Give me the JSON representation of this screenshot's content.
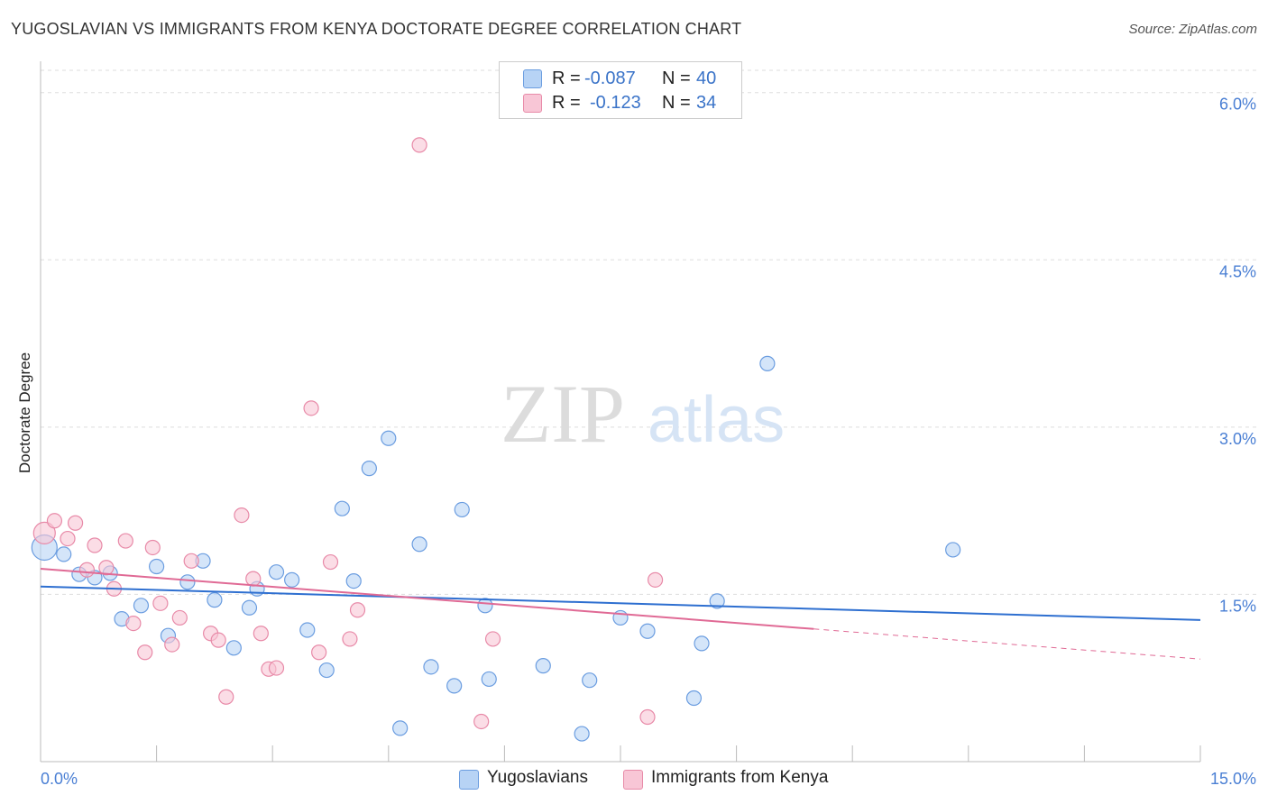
{
  "header": {
    "title": "YUGOSLAVIAN VS IMMIGRANTS FROM KENYA DOCTORATE DEGREE CORRELATION CHART",
    "source": "Source: ZipAtlas.com"
  },
  "watermark": {
    "zip": "ZIP",
    "atlas": "atlas"
  },
  "legend": {
    "rows": [
      {
        "r_label": "R =",
        "r_value": "-0.087",
        "n_label": "N =",
        "n_value": "40"
      },
      {
        "r_label": "R =",
        "r_value": "-0.123",
        "n_label": "N =",
        "n_value": "34"
      }
    ]
  },
  "colors": {
    "blue_fill": "#b7d3f5",
    "blue_stroke": "#6b9de0",
    "blue_line": "#2e6fd0",
    "pink_fill": "#f8c6d6",
    "pink_stroke": "#e88aa8",
    "pink_line": "#e06a95",
    "tick": "#4a7fd4",
    "grid": "#dddddd"
  },
  "chart_data": {
    "type": "scatter",
    "title": "YUGOSLAVIAN VS IMMIGRANTS FROM KENYA DOCTORATE DEGREE CORRELATION CHART",
    "xlabel": "",
    "ylabel": "Doctorate Degree",
    "xlim": [
      0,
      15
    ],
    "ylim": [
      0,
      6.2
    ],
    "x_tick_labels": [
      "0.0%",
      "15.0%"
    ],
    "y_ticks": [
      1.5,
      3.0,
      4.5,
      6.0
    ],
    "y_tick_labels": [
      "1.5%",
      "3.0%",
      "4.5%",
      "6.0%"
    ],
    "grid": true,
    "legend_position": "top-center",
    "series": [
      {
        "name": "Yugoslavians",
        "color": "#b7d3f5",
        "points": [
          [
            0.05,
            1.92
          ],
          [
            0.3,
            1.86
          ],
          [
            0.5,
            1.68
          ],
          [
            0.7,
            1.65
          ],
          [
            0.9,
            1.69
          ],
          [
            1.05,
            1.28
          ],
          [
            1.3,
            1.4
          ],
          [
            1.5,
            1.75
          ],
          [
            1.65,
            1.13
          ],
          [
            1.9,
            1.61
          ],
          [
            2.1,
            1.8
          ],
          [
            2.25,
            1.45
          ],
          [
            2.5,
            1.02
          ],
          [
            2.7,
            1.38
          ],
          [
            2.8,
            1.55
          ],
          [
            3.05,
            1.7
          ],
          [
            3.25,
            1.63
          ],
          [
            3.45,
            1.18
          ],
          [
            3.7,
            0.82
          ],
          [
            3.9,
            2.27
          ],
          [
            4.05,
            1.62
          ],
          [
            4.25,
            2.63
          ],
          [
            4.5,
            2.9
          ],
          [
            4.65,
            0.3
          ],
          [
            4.9,
            1.95
          ],
          [
            5.05,
            0.85
          ],
          [
            5.35,
            0.68
          ],
          [
            5.45,
            2.26
          ],
          [
            5.75,
            1.4
          ],
          [
            5.8,
            0.74
          ],
          [
            6.5,
            0.86
          ],
          [
            7.0,
            0.25
          ],
          [
            7.1,
            0.73
          ],
          [
            7.5,
            1.29
          ],
          [
            7.85,
            1.17
          ],
          [
            8.45,
            0.57
          ],
          [
            8.55,
            1.06
          ],
          [
            8.75,
            1.44
          ],
          [
            9.4,
            3.57
          ],
          [
            11.8,
            1.9
          ]
        ],
        "trend": {
          "x": [
            0,
            15
          ],
          "y": [
            1.57,
            1.27
          ]
        }
      },
      {
        "name": "Immigrants from Kenya",
        "color": "#f8c6d6",
        "points": [
          [
            0.05,
            2.05
          ],
          [
            0.18,
            2.16
          ],
          [
            0.35,
            2.0
          ],
          [
            0.45,
            2.14
          ],
          [
            0.6,
            1.72
          ],
          [
            0.7,
            1.94
          ],
          [
            0.85,
            1.74
          ],
          [
            0.95,
            1.55
          ],
          [
            1.1,
            1.98
          ],
          [
            1.2,
            1.24
          ],
          [
            1.35,
            0.98
          ],
          [
            1.45,
            1.92
          ],
          [
            1.55,
            1.42
          ],
          [
            1.7,
            1.05
          ],
          [
            1.8,
            1.29
          ],
          [
            1.95,
            1.8
          ],
          [
            2.2,
            1.15
          ],
          [
            2.3,
            1.09
          ],
          [
            2.4,
            0.58
          ],
          [
            2.6,
            2.21
          ],
          [
            2.75,
            1.64
          ],
          [
            2.85,
            1.15
          ],
          [
            2.95,
            0.83
          ],
          [
            3.05,
            0.84
          ],
          [
            3.5,
            3.17
          ],
          [
            3.6,
            0.98
          ],
          [
            3.75,
            1.79
          ],
          [
            4.0,
            1.1
          ],
          [
            4.1,
            1.36
          ],
          [
            4.9,
            5.53
          ],
          [
            5.7,
            0.36
          ],
          [
            5.85,
            1.1
          ],
          [
            7.85,
            0.4
          ],
          [
            7.95,
            1.63
          ]
        ],
        "trend": {
          "x": [
            0,
            10.0
          ],
          "y": [
            1.73,
            1.19
          ],
          "dashed_extension": {
            "x": [
              10.0,
              15
            ],
            "y": [
              1.19,
              0.92
            ]
          }
        }
      }
    ]
  },
  "bottom_legend": [
    {
      "label": "Yugoslavians"
    },
    {
      "label": "Immigrants from Kenya"
    }
  ]
}
